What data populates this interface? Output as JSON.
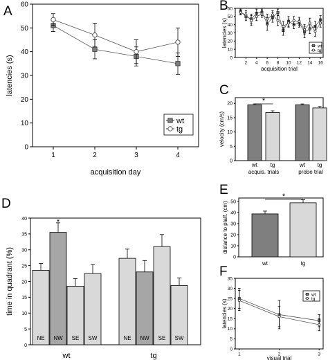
{
  "panels": {
    "A": {
      "letter": "A",
      "chart_data": {
        "type": "line",
        "x": [
          1,
          2,
          3,
          4
        ],
        "xticks": [
          "1",
          "2",
          "3",
          "4"
        ],
        "yticks": [
          "0",
          "10",
          "20",
          "30",
          "40",
          "50",
          "60"
        ],
        "xlabel": "acquisition day",
        "ylabel": "latencies (s)",
        "xlim": [
          0.5,
          4.5
        ],
        "ylim": [
          0,
          60
        ],
        "legend": "bottom-right",
        "series": [
          {
            "name": "wt",
            "marker": "square",
            "values": [
              51,
              41,
              38,
              35
            ],
            "err": [
              2.5,
              4,
              4,
              4.5
            ]
          },
          {
            "name": "tg",
            "marker": "circle",
            "values": [
              53.5,
              47,
              40,
              44
            ],
            "err": [
              2.5,
              5,
              5,
              6
            ]
          }
        ]
      }
    },
    "B": {
      "letter": "B",
      "chart_data": {
        "type": "line",
        "x": [
          1,
          2,
          3,
          4,
          5,
          6,
          7,
          8,
          9,
          10,
          11,
          12,
          13,
          14,
          15,
          16
        ],
        "xticks": [
          "2",
          "4",
          "6",
          "8",
          "10",
          "12",
          "14",
          "16"
        ],
        "yticks": [
          "0",
          "10",
          "20",
          "30",
          "40",
          "50",
          "60"
        ],
        "xlabel": "acquisition trial",
        "ylabel": "latencies (s)",
        "xlim": [
          0,
          16.5
        ],
        "ylim": [
          0,
          60
        ],
        "legend": "bottom-right",
        "series": [
          {
            "name": "wt",
            "marker": "square",
            "values": [
              56,
              50,
              47,
              54,
              55,
              41,
              49,
              55,
              33,
              44,
              40,
              42,
              31,
              35,
              38,
              46
            ],
            "err": [
              3,
              5,
              6,
              5,
              4,
              8,
              6,
              4,
              6,
              6,
              5,
              5,
              7,
              6,
              6,
              5
            ]
          },
          {
            "name": "tg",
            "marker": "circle",
            "values": [
              55,
              52,
              45,
              50,
              53,
              47,
              52,
              45,
              38,
              42,
              45,
              44,
              34,
              42,
              32,
              42
            ],
            "err": [
              3,
              5,
              6,
              5,
              4,
              6,
              5,
              6,
              6,
              5,
              5,
              5,
              6,
              6,
              6,
              5
            ]
          }
        ]
      }
    },
    "C": {
      "letter": "C",
      "chart_data": {
        "type": "bar",
        "categories": [
          "wt",
          "tg",
          "wt",
          "tg"
        ],
        "groups": [
          "acquis. trials",
          "probe trial"
        ],
        "values": [
          19.5,
          16.8,
          19.5,
          18.4
        ],
        "err": [
          0.3,
          0.6,
          0.3,
          0.5
        ],
        "colors": [
          "#7f7f7f",
          "#d9d9d9",
          "#7f7f7f",
          "#d9d9d9"
        ],
        "yticks": [
          "0",
          "5",
          "10",
          "15",
          "20"
        ],
        "ylabel": "velocity (cm/s)",
        "ylim": [
          0,
          22
        ],
        "significance": "*"
      }
    },
    "D": {
      "letter": "D",
      "chart_data": {
        "type": "bar",
        "groups": [
          "wt",
          "tg"
        ],
        "categories": [
          "NE",
          "NW",
          "SE",
          "SW",
          "NE",
          "NW",
          "SE",
          "SW"
        ],
        "values": [
          23.5,
          35.5,
          18.5,
          22.5,
          27.3,
          23,
          31,
          18.7
        ],
        "err": [
          2.2,
          3,
          2.4,
          2.8,
          2.9,
          3.6,
          3.8,
          2.4
        ],
        "colors": [
          "#d9d9d9",
          "#a6a6a6",
          "#d9d9d9",
          "#d9d9d9",
          "#d9d9d9",
          "#a6a6a6",
          "#d9d9d9",
          "#d9d9d9"
        ],
        "yticks": [
          "0",
          "5",
          "10",
          "15",
          "20",
          "25",
          "30",
          "35",
          "40"
        ],
        "ylabel": "time in quadrant (%)",
        "ylim": [
          0,
          40
        ],
        "significance": "*"
      }
    },
    "E": {
      "letter": "E",
      "chart_data": {
        "type": "bar",
        "categories": [
          "wt",
          "tg"
        ],
        "values": [
          38.7,
          48.7
        ],
        "err": [
          2.5,
          2.8
        ],
        "colors": [
          "#7f7f7f",
          "#d9d9d9"
        ],
        "yticks": [
          "0",
          "10",
          "20",
          "30",
          "40",
          "50"
        ],
        "ylabel": "distance to platf. (cm)",
        "ylim": [
          0,
          53
        ],
        "significance": "*"
      }
    },
    "F": {
      "letter": "F",
      "chart_data": {
        "type": "line",
        "x": [
          1,
          2,
          3
        ],
        "xticks": [
          "1",
          "2",
          "3"
        ],
        "yticks": [
          "0",
          "5",
          "10",
          "15",
          "20",
          "25",
          "30",
          "35"
        ],
        "xlabel": "visual trial",
        "ylabel": "latencies (s)",
        "xlim": [
          0.9,
          3.1
        ],
        "ylim": [
          0,
          35
        ],
        "legend": "top-right",
        "series": [
          {
            "name": "wt",
            "marker": "square",
            "values": [
              25,
              17,
              14
            ],
            "err": [
              5,
              7,
              3
            ]
          },
          {
            "name": "tg",
            "marker": "circle",
            "values": [
              24,
              16,
              12
            ],
            "err": [
              5,
              5,
              3
            ]
          }
        ]
      }
    }
  }
}
